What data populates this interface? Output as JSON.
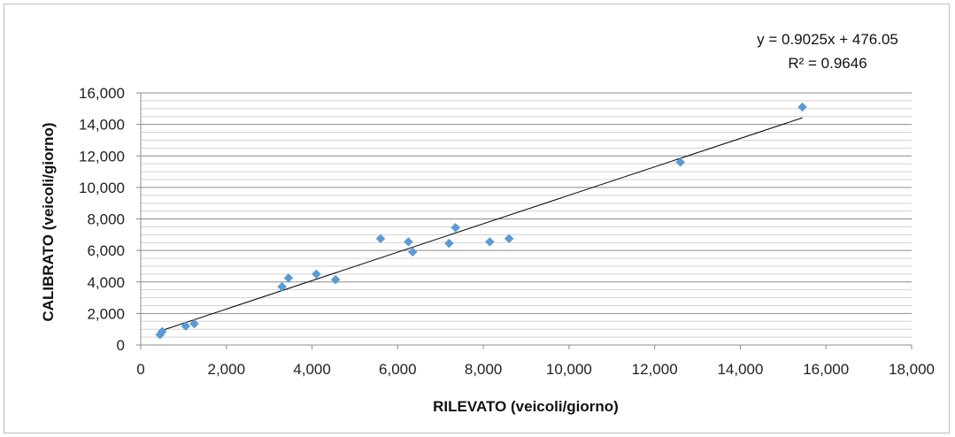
{
  "chart_data": {
    "type": "scatter",
    "title": "",
    "xlabel": "RILEVATO (veicoli/giorno)",
    "ylabel": "CALIBRATO (veicoli/giorno)",
    "xlim": [
      0,
      18000
    ],
    "ylim": [
      0,
      16000
    ],
    "x_ticks": [
      "0",
      "2,000",
      "4,000",
      "6,000",
      "8,000",
      "10,000",
      "12,000",
      "14,000",
      "16,000",
      "18,000"
    ],
    "y_ticks": [
      "0",
      "2,000",
      "4,000",
      "6,000",
      "8,000",
      "10,000",
      "12,000",
      "14,000",
      "16,000"
    ],
    "grid": true,
    "legend": "none",
    "marker_color": "#5b9bd5",
    "trendline_color": "#000000",
    "series": [
      {
        "points": [
          {
            "x": 450,
            "y": 650
          },
          {
            "x": 500,
            "y": 850
          },
          {
            "x": 1050,
            "y": 1200
          },
          {
            "x": 1250,
            "y": 1350
          },
          {
            "x": 3300,
            "y": 3700
          },
          {
            "x": 3450,
            "y": 4250
          },
          {
            "x": 4100,
            "y": 4500
          },
          {
            "x": 4550,
            "y": 4150
          },
          {
            "x": 5600,
            "y": 6750
          },
          {
            "x": 6250,
            "y": 6550
          },
          {
            "x": 6350,
            "y": 5900
          },
          {
            "x": 7200,
            "y": 6450
          },
          {
            "x": 7350,
            "y": 7450
          },
          {
            "x": 8150,
            "y": 6550
          },
          {
            "x": 8600,
            "y": 6750
          },
          {
            "x": 12600,
            "y": 11600
          },
          {
            "x": 15450,
            "y": 15100
          }
        ]
      }
    ],
    "trendline": {
      "type": "linear",
      "slope": 0.9025,
      "intercept": 476.05,
      "x_range": [
        450,
        15450
      ],
      "equation_label": "y = 0.9025x + 476.05",
      "r2_label": "R² = 0.9646"
    }
  }
}
